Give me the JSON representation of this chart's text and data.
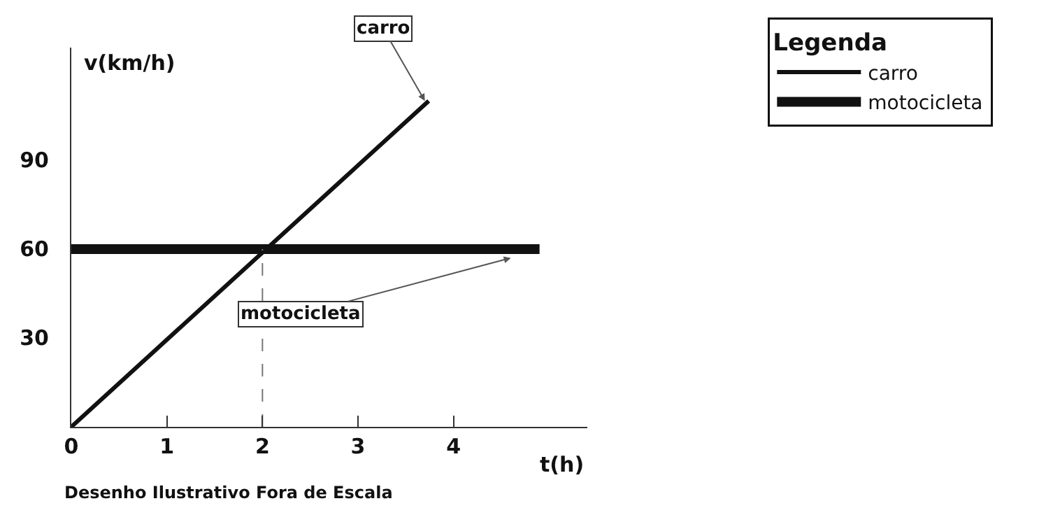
{
  "chart_data": {
    "type": "line",
    "xlabel": "t(h)",
    "ylabel": "v(km/h)",
    "legend_title": "Legenda",
    "series": [
      {
        "name": "carro",
        "color": "#111111",
        "x": [
          0,
          3.74
        ],
        "values": [
          0,
          110
        ]
      },
      {
        "name": "motocicleta",
        "color": "#111111",
        "x": [
          0,
          4.9
        ],
        "values": [
          60,
          60
        ]
      },
      {
        "color": "#777777",
        "x": [
          2,
          2
        ],
        "values": [
          0,
          60
        ],
        "line_style": "dashed"
      }
    ],
    "xlim": [
      0,
      5.4
    ],
    "ylim": [
      0,
      128
    ],
    "xticks": [
      0,
      1,
      2,
      3,
      4
    ],
    "yticks": [
      30,
      60,
      90
    ],
    "legend": "top right",
    "marker": "none",
    "annotations": [
      {
        "text": "carro",
        "x": 3.7,
        "y": 110
      },
      {
        "text": "motocicleta",
        "x": 4.6,
        "y": 57
      },
      "Desenho Ilustrativo Fora de Escala"
    ]
  }
}
